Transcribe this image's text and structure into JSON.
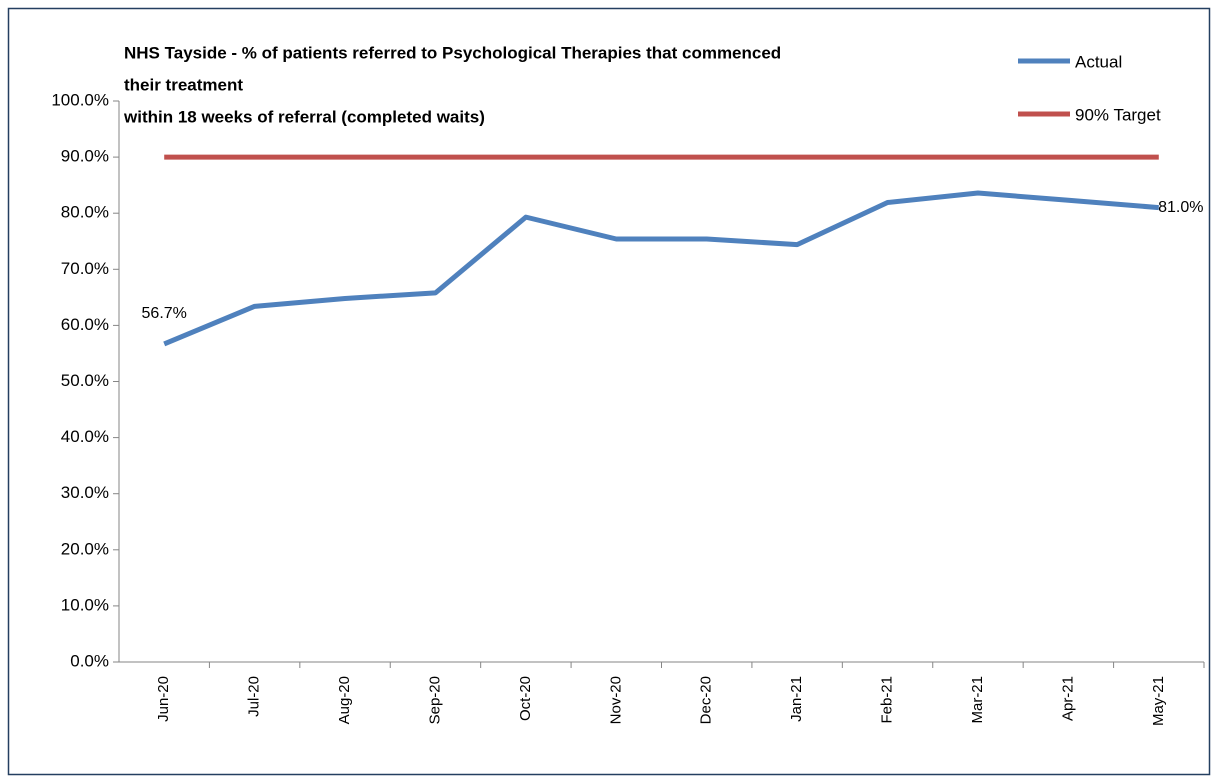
{
  "chart_data": {
    "type": "line",
    "title": [
      "NHS Tayside - % of patients referred to Psychological  Therapies that commenced",
      "their treatment",
      "within 18 weeks of referral (completed waits)"
    ],
    "categories": [
      "Jun-20",
      "Jul-20",
      "Aug-20",
      "Sep-20",
      "Oct-20",
      "Nov-20",
      "Dec-20",
      "Jan-21",
      "Feb-21",
      "Mar-21",
      "Apr-21",
      "May-21"
    ],
    "series": [
      {
        "name": "Actual",
        "color": "#4f81bd",
        "values": [
          56.7,
          63.4,
          64.8,
          65.8,
          79.3,
          75.4,
          75.4,
          74.4,
          81.9,
          83.6,
          82.3,
          81.0
        ],
        "value_labels": [
          "56.7%",
          null,
          null,
          null,
          null,
          null,
          null,
          null,
          null,
          null,
          null,
          "81.0%"
        ]
      },
      {
        "name": "90% Target",
        "color": "#c0504d",
        "values": [
          90,
          90,
          90,
          90,
          90,
          90,
          90,
          90,
          90,
          90,
          90,
          90
        ]
      }
    ],
    "ylim": [
      0,
      100
    ],
    "yticks": [
      {
        "value": 0,
        "label": "0.0%"
      },
      {
        "value": 10,
        "label": "10.0%"
      },
      {
        "value": 20,
        "label": "20.0%"
      },
      {
        "value": 30,
        "label": "30.0%"
      },
      {
        "value": 40,
        "label": "40.0%"
      },
      {
        "value": 50,
        "label": "50.0%"
      },
      {
        "value": 60,
        "label": "60.0%"
      },
      {
        "value": 70,
        "label": "70.0%"
      },
      {
        "value": 80,
        "label": "80.0%"
      },
      {
        "value": 90,
        "label": "90.0%"
      },
      {
        "value": 100,
        "label": "100.0%"
      }
    ],
    "legend": "top-right"
  }
}
